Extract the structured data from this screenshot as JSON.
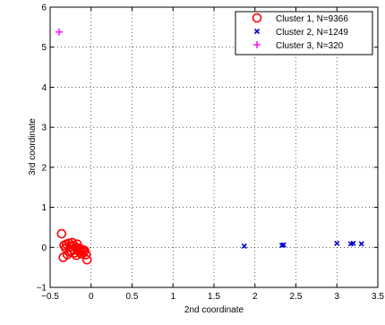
{
  "chart_data": {
    "type": "scatter",
    "xlabel": "2nd coordinate",
    "ylabel": "3rd coordinate",
    "xlim": [
      -0.5,
      3.5
    ],
    "ylim": [
      -1,
      6
    ],
    "xticks": [
      -0.5,
      0,
      0.5,
      1,
      1.5,
      2,
      2.5,
      3,
      3.5
    ],
    "yticks": [
      -1,
      0,
      1,
      2,
      3,
      4,
      5,
      6
    ],
    "xtick_labels": [
      "−0.5",
      "0",
      "0.5",
      "1",
      "1.5",
      "2",
      "2.5",
      "3",
      "3.5"
    ],
    "ytick_labels": [
      "−1",
      "0",
      "1",
      "2",
      "3",
      "4",
      "5",
      "6"
    ],
    "grid": true,
    "legend_position": "top-right",
    "series": [
      {
        "name": "Cluster 1, N=9366",
        "marker": "circle",
        "color": "#ff0000",
        "points": [
          [
            -0.36,
            0.34
          ],
          [
            -0.33,
            0.05
          ],
          [
            -0.31,
            -0.02
          ],
          [
            -0.29,
            -0.18
          ],
          [
            -0.27,
            0.1
          ],
          [
            -0.25,
            0.02
          ],
          [
            -0.24,
            -0.1
          ],
          [
            -0.23,
            0.12
          ],
          [
            -0.22,
            -0.05
          ],
          [
            -0.21,
            0.05
          ],
          [
            -0.2,
            -0.14
          ],
          [
            -0.19,
            0.0
          ],
          [
            -0.18,
            -0.2
          ],
          [
            -0.17,
            0.08
          ],
          [
            -0.16,
            -0.08
          ],
          [
            -0.15,
            -0.02
          ],
          [
            -0.14,
            -0.12
          ],
          [
            -0.13,
            -0.04
          ],
          [
            -0.12,
            -0.16
          ],
          [
            -0.1,
            -0.06
          ],
          [
            -0.09,
            -0.12
          ],
          [
            -0.08,
            -0.08
          ],
          [
            -0.06,
            -0.18
          ],
          [
            -0.34,
            -0.25
          ],
          [
            -0.3,
            0.08
          ],
          [
            -0.26,
            -0.12
          ],
          [
            -0.05,
            -0.31
          ]
        ]
      },
      {
        "name": "Cluster 2, N=1249",
        "marker": "x",
        "color": "#0000cc",
        "points": [
          [
            1.87,
            0.03
          ],
          [
            2.33,
            0.05
          ],
          [
            2.35,
            0.06
          ],
          [
            3.0,
            0.1
          ],
          [
            3.17,
            0.09
          ],
          [
            3.2,
            0.1
          ],
          [
            3.3,
            0.09
          ]
        ]
      },
      {
        "name": "Cluster 3, N=320",
        "marker": "plus",
        "color": "#ff00ff",
        "points": [
          [
            -0.39,
            5.38
          ]
        ]
      }
    ]
  }
}
